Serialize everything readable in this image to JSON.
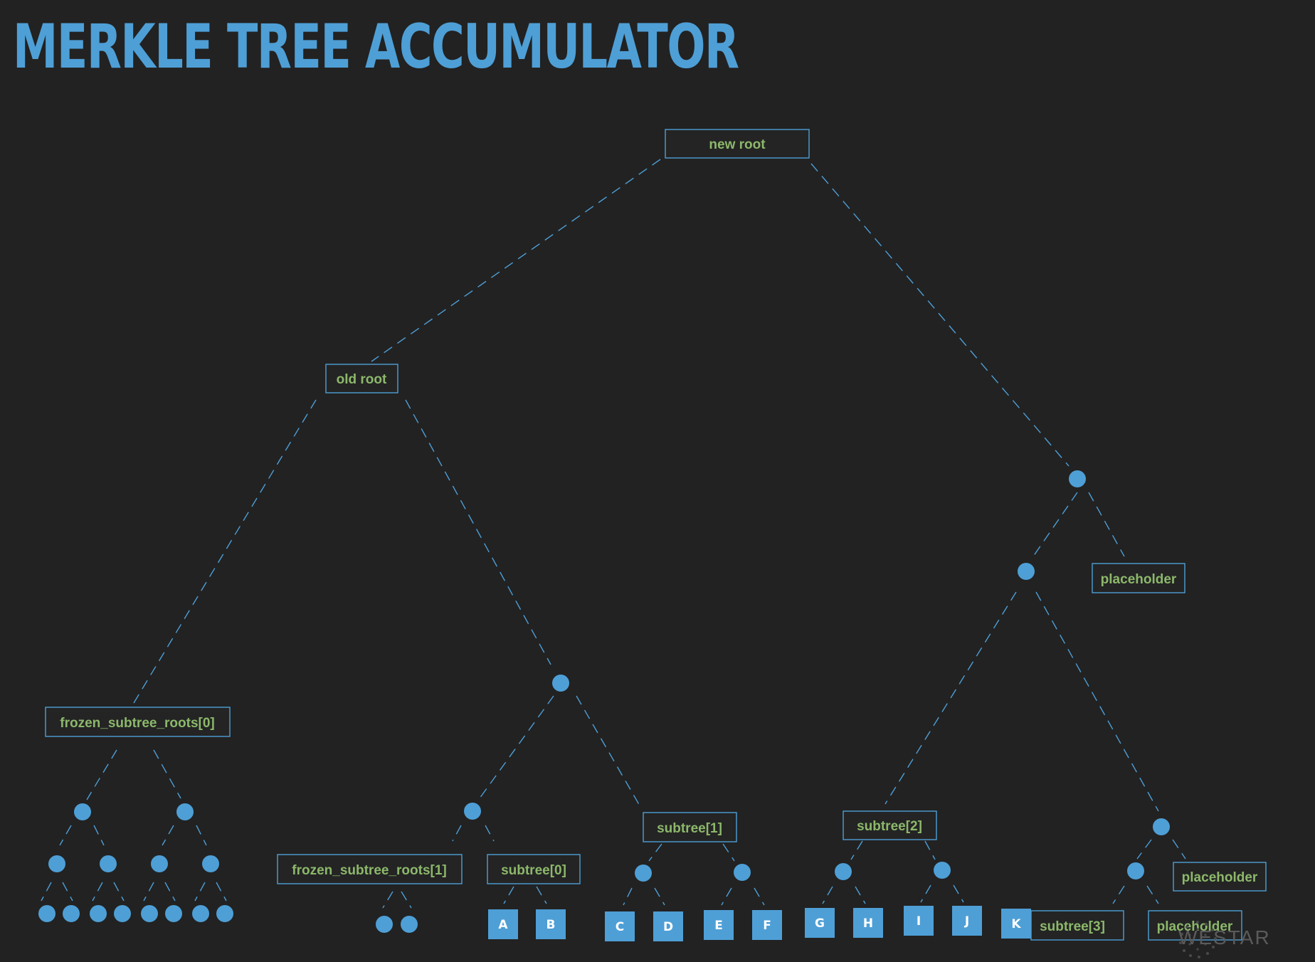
{
  "title": "MERKLE TREE ACCUMULATOR",
  "brand": "WESTAR",
  "colors": {
    "background": "#222222",
    "accent_blue": "#4e9fd6",
    "label_green": "#8cb86b",
    "leaf_text": "#ffffff"
  },
  "labels": {
    "new_root": "new root",
    "old_root": "old root",
    "placeholder": "placeholder",
    "frozen_subtree_roots_0": "frozen_subtree_roots[0]",
    "frozen_subtree_roots_1": "frozen_subtree_roots[1]",
    "subtree_0": "subtree[0]",
    "subtree_1": "subtree[1]",
    "subtree_2": "subtree[2]",
    "subtree_3": "subtree[3]"
  },
  "leaves": [
    "A",
    "B",
    "C",
    "D",
    "E",
    "F",
    "G",
    "H",
    "I",
    "J",
    "K"
  ]
}
